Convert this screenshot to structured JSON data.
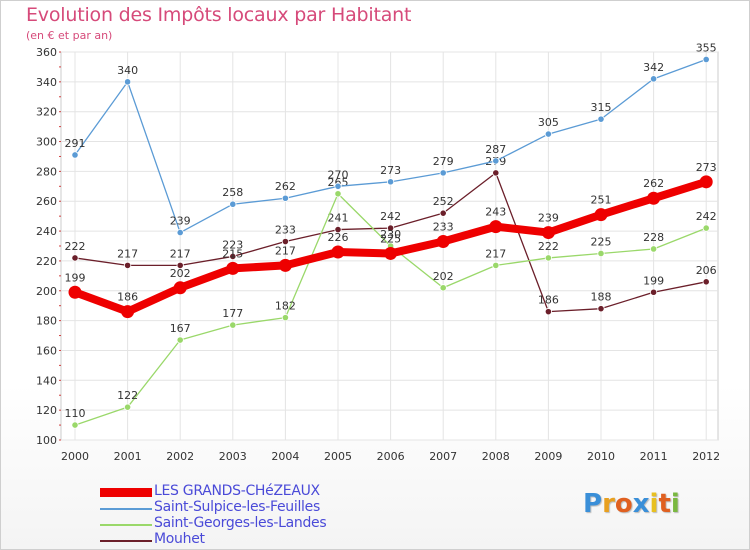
{
  "chart_data": {
    "type": "line",
    "title": "Evolution des Impôts locaux par Habitant",
    "subtitle": "(en € et par an)",
    "categories": [
      "2000",
      "2001",
      "2002",
      "2003",
      "2004",
      "2005",
      "2006",
      "2007",
      "2008",
      "2009",
      "2010",
      "2011",
      "2012"
    ],
    "ylim": [
      100,
      360
    ],
    "yticks": [
      100,
      120,
      140,
      160,
      180,
      200,
      220,
      240,
      260,
      280,
      300,
      320,
      340,
      360
    ],
    "grid": true,
    "series": [
      {
        "name": "Mouhet",
        "color": "#6b1f2a",
        "values": [
          222,
          217,
          217,
          223,
          233,
          241,
          242,
          252,
          279,
          186,
          188,
          199,
          206
        ],
        "labels": [
          "222",
          "217",
          "217",
          "223",
          "233",
          "241",
          "242",
          "252",
          "279",
          "186",
          "188",
          "199",
          "206"
        ]
      },
      {
        "name": "Saint-Georges-les-Landes",
        "color": "#9ad86a",
        "values": [
          110,
          122,
          167,
          177,
          182,
          265,
          230,
          202,
          217,
          222,
          225,
          228,
          242
        ],
        "labels": [
          "110",
          "122",
          "167",
          "177",
          "182",
          "265",
          "230",
          "202",
          "217",
          "222",
          "225",
          "228",
          "242"
        ]
      },
      {
        "name": "Saint-Sulpice-les-Feuilles",
        "color": "#5b9bd5",
        "values": [
          291,
          340,
          239,
          258,
          262,
          270,
          273,
          279,
          287,
          305,
          315,
          342,
          355
        ],
        "labels": [
          "291",
          "340",
          "239",
          "258",
          "262",
          "270",
          "273",
          "279",
          "287",
          "305",
          "315",
          "342",
          "355"
        ]
      },
      {
        "name": "LES GRANDS-CHéZEAUX",
        "color": "#ee0000",
        "values": [
          199,
          186,
          202,
          215,
          217,
          226,
          225,
          233,
          243,
          239,
          251,
          262,
          273
        ],
        "labels": [
          "199",
          "186",
          "202",
          "215",
          "217",
          "226",
          "225",
          "233",
          "243",
          "239",
          "251",
          "262",
          "273"
        ]
      }
    ],
    "legend": [
      "LES GRANDS-CHéZEAUX",
      "Saint-Sulpice-les-Feuilles",
      "Saint-Georges-les-Landes",
      "Mouhet"
    ]
  },
  "logo": {
    "letters": [
      "P",
      "r",
      "o",
      "x",
      "i",
      "t",
      "i"
    ],
    "colors": [
      "#3a8fd8",
      "#e8a020",
      "#e06020",
      "#3a8fd8",
      "#e8c020",
      "#e06020",
      "#7ab840"
    ]
  }
}
